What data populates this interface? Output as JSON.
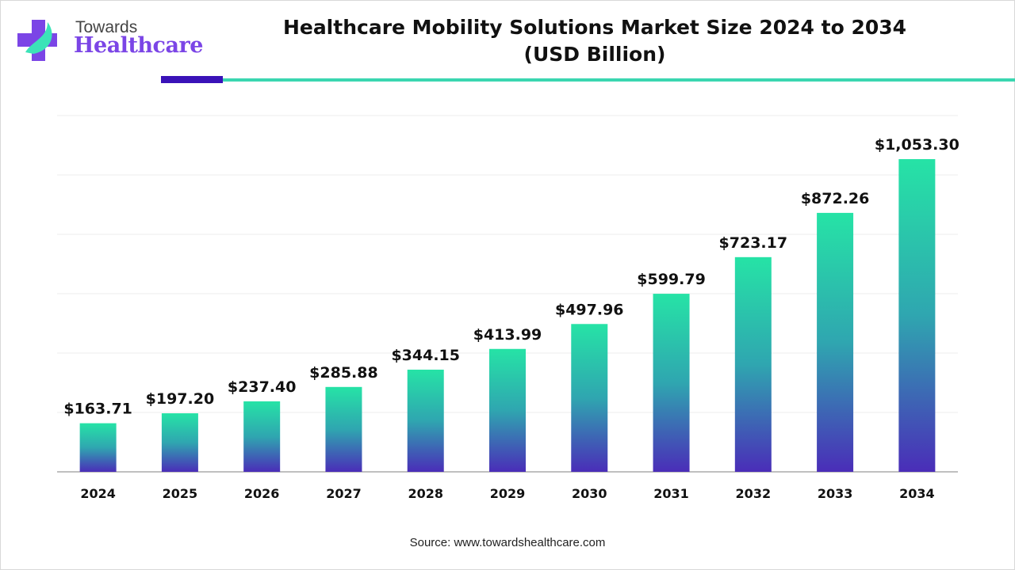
{
  "logo": {
    "top": "Towards",
    "main": "Healthcare"
  },
  "source": "Source: www.towardshealthcare.com",
  "colors": {
    "bar_top": "#26e3a6",
    "bar_bottom": "#4a2db8",
    "accent_dark": "#3a12b8",
    "accent_teal": "#3ad6b0"
  },
  "chart_data": {
    "type": "bar",
    "title": "Healthcare Mobility Solutions Market Size 2024 to 2034 (USD Billion)",
    "title_lines": [
      "Healthcare Mobility Solutions Market Size 2024 to 2034",
      "(USD Billion)"
    ],
    "categories": [
      "2024",
      "2025",
      "2026",
      "2027",
      "2028",
      "2029",
      "2030",
      "2031",
      "2032",
      "2033",
      "2034"
    ],
    "values": [
      163.71,
      197.2,
      237.4,
      285.88,
      344.15,
      413.99,
      497.96,
      599.79,
      723.17,
      872.26,
      1053.3
    ],
    "data_labels": [
      "$163.71",
      "$197.20",
      "$237.40",
      "$285.88",
      "$344.15",
      "$413.99",
      "$497.96",
      "$599.79",
      "$723.17",
      "$872.26",
      "$1,053.30"
    ],
    "ylim": [
      0,
      1200
    ],
    "grid": true,
    "xlabel": "",
    "ylabel": ""
  }
}
